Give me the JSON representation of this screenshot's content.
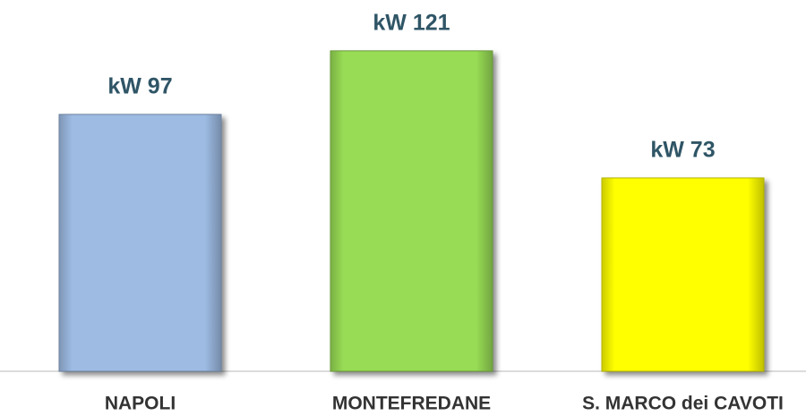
{
  "chart_data": {
    "type": "bar",
    "categories": [
      "NAPOLI",
      "MONTEFREDANE",
      "S. MARCO dei CAVOTI"
    ],
    "values": [
      97,
      121,
      73
    ],
    "value_labels": [
      "kW 97",
      "kW 121",
      "kW 73"
    ],
    "colors": [
      "#9dbbe3",
      "#98dc55",
      "#ffff00"
    ]
  }
}
